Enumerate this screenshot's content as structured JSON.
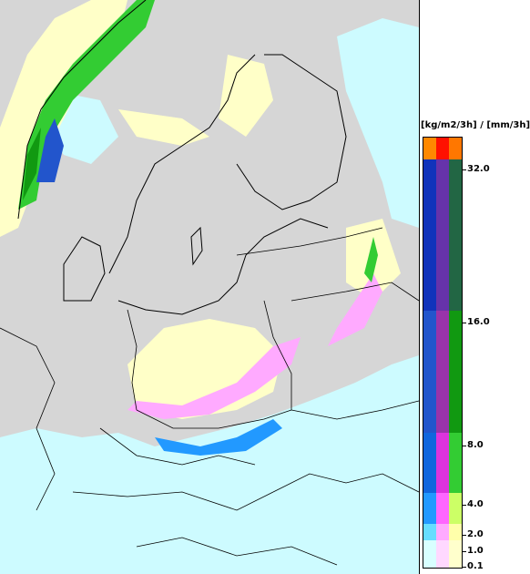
{
  "legend": {
    "title": "[kg/m2/3h] / [mm/3h]",
    "ticks": [
      "32.0",
      "16.0",
      "8.0",
      "4.0",
      "2.0",
      "1.0",
      "0.1"
    ],
    "bands": [
      {
        "range": "0.1-1.0",
        "colors": [
          "#d8ffff",
          "#ffd8ff",
          "#ffffcc"
        ]
      },
      {
        "range": "1.0-2.0",
        "colors": [
          "#66ddff",
          "#ffaaff",
          "#ffffaa"
        ]
      },
      {
        "range": "2.0-4.0",
        "colors": [
          "#2299ff",
          "#ff66ff",
          "#ccff66"
        ]
      },
      {
        "range": "4.0-8.0",
        "colors": [
          "#1166dd",
          "#dd33dd",
          "#33cc33"
        ]
      },
      {
        "range": "8.0-16.0",
        "colors": [
          "#2255cc",
          "#9933aa",
          "#119911"
        ]
      },
      {
        "range": "16.0-32.0",
        "colors": [
          "#1133bb",
          "#6633aa",
          "#226644"
        ]
      },
      {
        "range": "32.0+",
        "colors": [
          "#ff8800",
          "#ff1100",
          "#ff7700"
        ]
      }
    ]
  },
  "map": {
    "background_color": "#d6d6d6",
    "border_color": "#000000"
  }
}
